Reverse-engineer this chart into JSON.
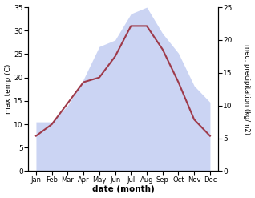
{
  "months": [
    "Jan",
    "Feb",
    "Mar",
    "Apr",
    "May",
    "Jun",
    "Jul",
    "Aug",
    "Sep",
    "Oct",
    "Nov",
    "Dec"
  ],
  "month_indices": [
    0,
    1,
    2,
    3,
    4,
    5,
    6,
    7,
    8,
    9,
    10,
    11
  ],
  "temperature": [
    7.5,
    10.0,
    14.5,
    19.0,
    20.0,
    24.5,
    31.0,
    31.0,
    26.0,
    19.0,
    11.0,
    7.5
  ],
  "precipitation": [
    7.5,
    7.5,
    10.0,
    14.0,
    19.0,
    20.0,
    24.0,
    25.0,
    21.0,
    18.0,
    13.0,
    10.5
  ],
  "temp_ylim": [
    0,
    35
  ],
  "precip_ylim": [
    0,
    25
  ],
  "temp_yticks": [
    0,
    5,
    10,
    15,
    20,
    25,
    30,
    35
  ],
  "precip_yticks": [
    0,
    5,
    10,
    15,
    20,
    25
  ],
  "ylabel_left": "max temp (C)",
  "ylabel_right": "med. precipitation (kg/m2)",
  "xlabel": "date (month)",
  "line_color": "#9e3a4a",
  "fill_color": "#b0beee",
  "fill_alpha": 0.65,
  "background_color": "#ffffff"
}
